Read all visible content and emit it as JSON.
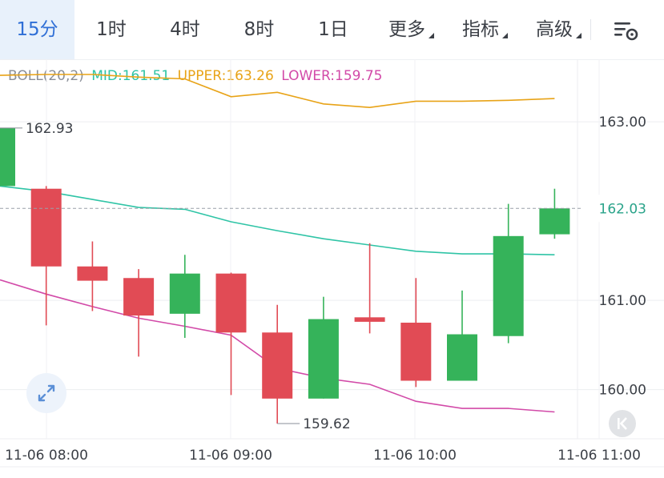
{
  "tabs": [
    {
      "label": "15分",
      "active": true,
      "dropdown": false
    },
    {
      "label": "1时",
      "active": false,
      "dropdown": false
    },
    {
      "label": "4时",
      "active": false,
      "dropdown": false
    },
    {
      "label": "8时",
      "active": false,
      "dropdown": false
    },
    {
      "label": "1日",
      "active": false,
      "dropdown": false
    },
    {
      "label": "更多",
      "active": false,
      "dropdown": true
    },
    {
      "label": "指标",
      "active": false,
      "dropdown": true
    },
    {
      "label": "高级",
      "active": false,
      "dropdown": true
    }
  ],
  "icons": {
    "settings": "chart-settings-icon",
    "zoom": "expand-arrows-icon",
    "back": "scroll-to-latest-icon"
  },
  "legend": {
    "name": "BOLL(20,2)",
    "mid": "MID:161.51",
    "upper": "UPPER:163.26",
    "lower": "LOWER:159.75"
  },
  "colors": {
    "accent": "#2f6fd6",
    "up": "#35b35a",
    "down": "#e14b55",
    "mid": "#2fc4a6",
    "upper": "#e8a317",
    "lower": "#d24aa8",
    "legend_name": "#8a8f98",
    "axis_text": "#3b3f46",
    "current_price": "#2aa38a"
  },
  "chart_data": {
    "type": "candlestick",
    "indicator": "BOLL(20,2)",
    "ylim": [
      159.45,
      163.7
    ],
    "y_ticks": [
      "163.00",
      "161.00",
      "160.00"
    ],
    "current_price": "162.03",
    "x_ticks": [
      "11-06 08:00",
      "11-06 09:00",
      "11-06 10:00",
      "11-06 11:00"
    ],
    "candles": [
      {
        "open": 162.28,
        "close": 162.93,
        "high": 162.93,
        "low": 162.28
      },
      {
        "open": 162.25,
        "close": 161.38,
        "high": 162.28,
        "low": 160.72
      },
      {
        "open": 161.38,
        "close": 161.22,
        "high": 161.66,
        "low": 160.88
      },
      {
        "open": 161.25,
        "close": 160.83,
        "high": 161.35,
        "low": 160.37
      },
      {
        "open": 160.85,
        "close": 161.3,
        "high": 161.51,
        "low": 160.58
      },
      {
        "open": 161.3,
        "close": 160.64,
        "high": 161.31,
        "low": 159.94
      },
      {
        "open": 160.64,
        "close": 159.9,
        "high": 160.95,
        "low": 159.62
      },
      {
        "open": 159.9,
        "close": 160.79,
        "high": 161.04,
        "low": 159.9
      },
      {
        "open": 160.81,
        "close": 160.76,
        "high": 161.64,
        "low": 160.63
      },
      {
        "open": 160.75,
        "close": 160.1,
        "high": 161.25,
        "low": 160.03
      },
      {
        "open": 160.1,
        "close": 160.62,
        "high": 161.11,
        "low": 160.1
      },
      {
        "open": 160.6,
        "close": 161.72,
        "high": 162.08,
        "low": 160.52
      },
      {
        "open": 161.74,
        "close": 162.03,
        "high": 162.25,
        "low": 161.69
      }
    ],
    "series": [
      {
        "name": "UPPER",
        "values": [
          163.52,
          163.53,
          163.53,
          163.5,
          163.48,
          163.28,
          163.33,
          163.2,
          163.16,
          163.23,
          163.23,
          163.24,
          163.26
        ]
      },
      {
        "name": "MID",
        "values": [
          162.28,
          162.22,
          162.13,
          162.04,
          162.02,
          161.88,
          161.78,
          161.69,
          161.62,
          161.55,
          161.52,
          161.52,
          161.51
        ]
      },
      {
        "name": "LOWER",
        "values": [
          161.23,
          161.07,
          160.93,
          160.8,
          160.71,
          160.61,
          160.24,
          160.13,
          160.06,
          159.87,
          159.79,
          159.79,
          159.75
        ]
      }
    ],
    "annotations": [
      {
        "label": "162.93",
        "value": 162.93,
        "candle": 0
      },
      {
        "label": "159.62",
        "value": 159.62,
        "candle": 6
      }
    ]
  }
}
